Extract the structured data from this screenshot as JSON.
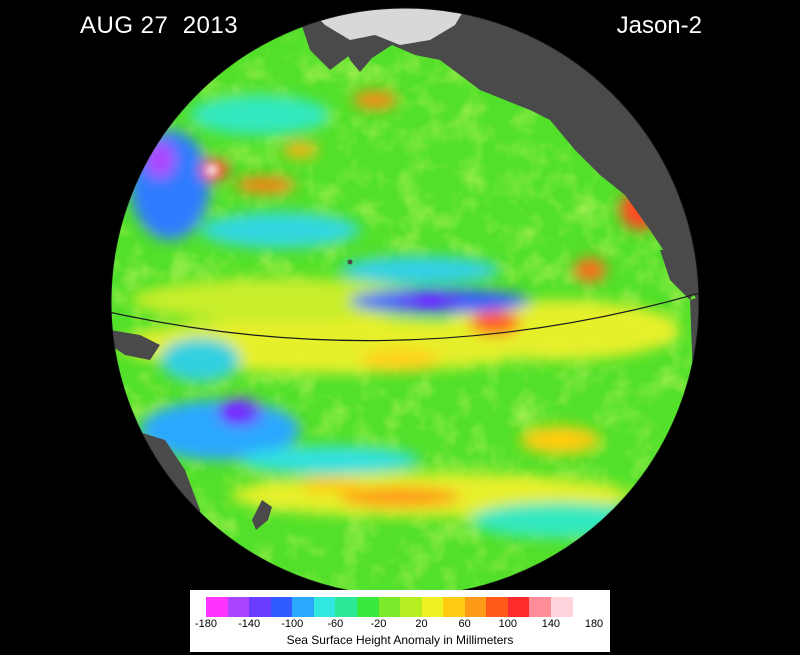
{
  "header": {
    "date": "AUG 27  2013",
    "mission": "Jason-2"
  },
  "legend": {
    "title": "Sea Surface Height Anomaly in Millimeters",
    "ticks": [
      "-180",
      "-140",
      "-100",
      "-60",
      "-20",
      "20",
      "60",
      "100",
      "140",
      "180"
    ],
    "colors": [
      "#ff33ff",
      "#aa44ff",
      "#6a3cff",
      "#2f5bff",
      "#2aa8ff",
      "#30e8e0",
      "#2ee89a",
      "#39e83c",
      "#7bea2a",
      "#b6ee22",
      "#eef122",
      "#ffcc11",
      "#ff9918",
      "#ff5a1a",
      "#ff2a2a",
      "#ff8c96",
      "#ffd4dc",
      "#ffffff"
    ]
  },
  "map": {
    "ocean_base_color": "#52e02a",
    "land_color": "#4a4a4a",
    "ice_color": "#d8d8d8",
    "background_color": "#000000"
  }
}
